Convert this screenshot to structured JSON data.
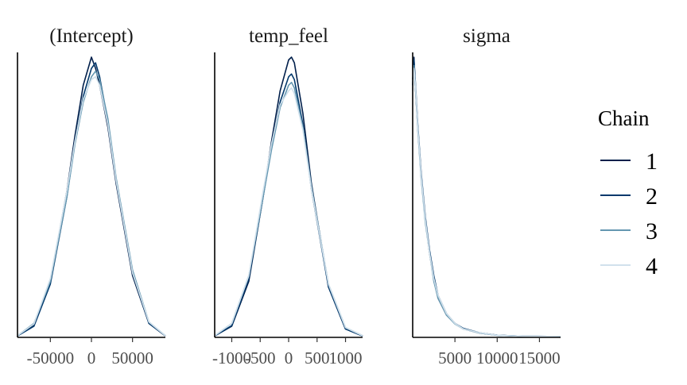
{
  "chart_data": {
    "type": "line",
    "title": "",
    "legend": {
      "title": "Chain",
      "position": "right",
      "entries": [
        {
          "label": "1",
          "color": "#011f4b"
        },
        {
          "label": "2",
          "color": "#03396c"
        },
        {
          "label": "3",
          "color": "#6497b1"
        },
        {
          "label": "4",
          "color": "#d1e1ec"
        }
      ]
    },
    "panels": [
      {
        "title": "(Intercept)",
        "xlim": [
          -90000,
          90000
        ],
        "ticks": [
          {
            "value": -50000,
            "label": "-50000"
          },
          {
            "value": 0,
            "label": "0"
          },
          {
            "value": 50000,
            "label": "50000"
          }
        ],
        "series": [
          {
            "name": "1",
            "color": "#011f4b",
            "x": [
              -90000,
              -70000,
              -50000,
              -30000,
              -20000,
              -10000,
              0,
              5000,
              10000,
              20000,
              30000,
              50000,
              70000,
              90000
            ],
            "y": [
              0.005,
              0.045,
              0.2,
              0.52,
              0.72,
              0.9,
              1.0,
              0.96,
              0.9,
              0.75,
              0.55,
              0.22,
              0.05,
              0.005
            ]
          },
          {
            "name": "2",
            "color": "#03396c",
            "x": [
              -90000,
              -70000,
              -50000,
              -30000,
              -20000,
              -10000,
              0,
              5000,
              10000,
              20000,
              30000,
              50000,
              70000,
              90000
            ],
            "y": [
              0.005,
              0.04,
              0.19,
              0.5,
              0.7,
              0.86,
              0.96,
              0.98,
              0.93,
              0.77,
              0.56,
              0.23,
              0.05,
              0.006
            ]
          },
          {
            "name": "3",
            "color": "#6497b1",
            "x": [
              -90000,
              -70000,
              -50000,
              -30000,
              -20000,
              -10000,
              0,
              5000,
              10000,
              20000,
              30000,
              50000,
              70000,
              90000
            ],
            "y": [
              0.006,
              0.05,
              0.2,
              0.5,
              0.69,
              0.84,
              0.93,
              0.95,
              0.92,
              0.78,
              0.57,
              0.24,
              0.055,
              0.006
            ]
          },
          {
            "name": "4",
            "color": "#d1e1ec",
            "x": [
              -90000,
              -70000,
              -50000,
              -30000,
              -20000,
              -10000,
              0,
              5000,
              10000,
              20000,
              30000,
              50000,
              70000,
              90000
            ],
            "y": [
              0.006,
              0.048,
              0.21,
              0.52,
              0.7,
              0.85,
              0.92,
              0.93,
              0.9,
              0.76,
              0.56,
              0.23,
              0.055,
              0.006
            ]
          }
        ]
      },
      {
        "title": "temp_feel",
        "xlim": [
          -1300,
          1300
        ],
        "ticks": [
          {
            "value": -1000,
            "label": "-1000"
          },
          {
            "value": -500,
            "label": "-500"
          },
          {
            "value": 0,
            "label": "0"
          },
          {
            "value": 500,
            "label": "500"
          },
          {
            "value": 1000,
            "label": "1000"
          }
        ],
        "series": [
          {
            "name": "1",
            "color": "#011f4b",
            "x": [
              -1300,
              -1000,
              -700,
              -450,
              -300,
              -150,
              0,
              50,
              100,
              250,
              400,
              700,
              1000,
              1300
            ],
            "y": [
              0.005,
              0.04,
              0.2,
              0.5,
              0.7,
              0.88,
              0.99,
              1.0,
              0.98,
              0.8,
              0.55,
              0.18,
              0.03,
              0.005
            ]
          },
          {
            "name": "2",
            "color": "#03396c",
            "x": [
              -1300,
              -1000,
              -700,
              -450,
              -300,
              -150,
              0,
              50,
              100,
              250,
              400,
              700,
              1000,
              1300
            ],
            "y": [
              0.005,
              0.042,
              0.21,
              0.5,
              0.68,
              0.84,
              0.93,
              0.94,
              0.92,
              0.76,
              0.53,
              0.18,
              0.03,
              0.005
            ]
          },
          {
            "name": "3",
            "color": "#6497b1",
            "x": [
              -1300,
              -1000,
              -700,
              -450,
              -300,
              -150,
              0,
              50,
              100,
              250,
              400,
              700,
              1000,
              1300
            ],
            "y": [
              0.006,
              0.05,
              0.22,
              0.5,
              0.67,
              0.82,
              0.9,
              0.91,
              0.89,
              0.75,
              0.54,
              0.19,
              0.035,
              0.006
            ]
          },
          {
            "name": "4",
            "color": "#d1e1ec",
            "x": [
              -1300,
              -1000,
              -700,
              -450,
              -300,
              -150,
              0,
              50,
              100,
              250,
              400,
              700,
              1000,
              1300
            ],
            "y": [
              0.006,
              0.05,
              0.22,
              0.52,
              0.69,
              0.83,
              0.88,
              0.89,
              0.87,
              0.74,
              0.53,
              0.19,
              0.035,
              0.006
            ]
          }
        ]
      },
      {
        "title": "sigma",
        "xlim": [
          0,
          17500
        ],
        "ticks": [
          {
            "value": 5000,
            "label": "5000"
          },
          {
            "value": 10000,
            "label": "10000"
          },
          {
            "value": 15000,
            "label": "15000"
          }
        ],
        "series": [
          {
            "name": "1",
            "color": "#011f4b",
            "x": [
              0,
              150,
              300,
              600,
              1000,
              1500,
              2000,
              2500,
              3000,
              4000,
              5000,
              6000,
              8000,
              10000,
              13000,
              17500
            ],
            "y": [
              0.9,
              1.0,
              0.9,
              0.75,
              0.58,
              0.42,
              0.3,
              0.21,
              0.14,
              0.08,
              0.05,
              0.03,
              0.015,
              0.008,
              0.004,
              0.003
            ]
          },
          {
            "name": "2",
            "color": "#03396c",
            "x": [
              0,
              150,
              300,
              600,
              1000,
              1500,
              2000,
              2500,
              3000,
              4000,
              5000,
              6000,
              8000,
              10000,
              13000,
              17500
            ],
            "y": [
              0.92,
              0.99,
              0.92,
              0.76,
              0.59,
              0.43,
              0.31,
              0.22,
              0.15,
              0.085,
              0.05,
              0.032,
              0.016,
              0.008,
              0.004,
              0.003
            ]
          },
          {
            "name": "3",
            "color": "#6497b1",
            "x": [
              0,
              150,
              300,
              600,
              1000,
              1500,
              2000,
              2500,
              3000,
              4000,
              5000,
              6000,
              8000,
              10000,
              13000,
              17500
            ],
            "y": [
              0.9,
              0.97,
              0.9,
              0.74,
              0.57,
              0.41,
              0.3,
              0.2,
              0.14,
              0.08,
              0.048,
              0.03,
              0.015,
              0.007,
              0.004,
              0.003
            ]
          },
          {
            "name": "4",
            "color": "#d1e1ec",
            "x": [
              0,
              150,
              300,
              600,
              1000,
              1500,
              2000,
              2500,
              3000,
              4000,
              5000,
              6000,
              8000,
              10000,
              13000,
              17500
            ],
            "y": [
              0.88,
              0.96,
              0.91,
              0.75,
              0.58,
              0.42,
              0.3,
              0.21,
              0.15,
              0.085,
              0.05,
              0.03,
              0.016,
              0.008,
              0.004,
              0.003
            ]
          }
        ]
      }
    ]
  }
}
